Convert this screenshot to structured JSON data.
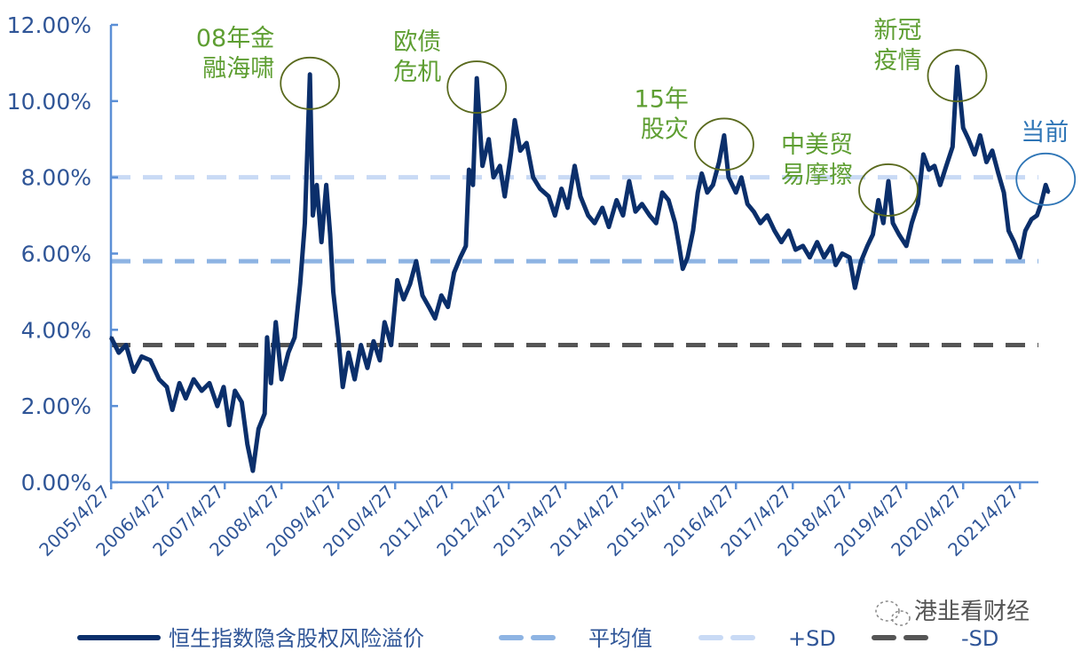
{
  "chart_data": {
    "type": "line",
    "title": "",
    "xlabel": "",
    "ylabel": "",
    "ylim": [
      0,
      12
    ],
    "y_ticks": [
      "0.00%",
      "2.00%",
      "4.00%",
      "6.00%",
      "8.00%",
      "10.00%",
      "12.00%"
    ],
    "y_tick_values": [
      0,
      2,
      4,
      6,
      8,
      10,
      12
    ],
    "x_ticks": [
      "2005/4/27",
      "2006/4/27",
      "2007/4/27",
      "2008/4/27",
      "2009/4/27",
      "2010/4/27",
      "2011/4/27",
      "2012/4/27",
      "2013/4/27",
      "2014/4/27",
      "2015/4/27",
      "2016/4/27",
      "2017/4/27",
      "2018/4/27",
      "2019/4/27",
      "2020/4/27",
      "2021/4/27"
    ],
    "grid": false,
    "legend_placement": "bottom",
    "series": [
      {
        "name": "恒生指数隐含股权风险溢价",
        "color": "#0b2f6b",
        "style": "solid",
        "points": [
          [
            "2005-04-27",
            3.8
          ],
          [
            "2005-06-15",
            3.4
          ],
          [
            "2005-08-01",
            3.6
          ],
          [
            "2005-09-20",
            2.9
          ],
          [
            "2005-11-10",
            3.3
          ],
          [
            "2006-01-05",
            3.2
          ],
          [
            "2006-03-01",
            2.7
          ],
          [
            "2006-04-20",
            2.5
          ],
          [
            "2006-05-25",
            1.9
          ],
          [
            "2006-07-10",
            2.6
          ],
          [
            "2006-08-20",
            2.2
          ],
          [
            "2006-10-10",
            2.7
          ],
          [
            "2006-12-01",
            2.4
          ],
          [
            "2007-01-20",
            2.6
          ],
          [
            "2007-03-10",
            2.0
          ],
          [
            "2007-04-20",
            2.5
          ],
          [
            "2007-05-25",
            1.5
          ],
          [
            "2007-07-01",
            2.4
          ],
          [
            "2007-08-15",
            2.1
          ],
          [
            "2007-09-20",
            1.0
          ],
          [
            "2007-10-25",
            0.3
          ],
          [
            "2007-12-01",
            1.4
          ],
          [
            "2008-01-10",
            1.8
          ],
          [
            "2008-01-25",
            3.8
          ],
          [
            "2008-02-20",
            2.6
          ],
          [
            "2008-03-20",
            4.2
          ],
          [
            "2008-04-27",
            2.7
          ],
          [
            "2008-06-10",
            3.4
          ],
          [
            "2008-07-20",
            3.8
          ],
          [
            "2008-08-25",
            5.2
          ],
          [
            "2008-09-25",
            6.8
          ],
          [
            "2008-10-27",
            10.7
          ],
          [
            "2008-11-15",
            7.0
          ],
          [
            "2008-12-10",
            7.8
          ],
          [
            "2009-01-10",
            6.3
          ],
          [
            "2009-02-10",
            7.8
          ],
          [
            "2009-03-05",
            6.5
          ],
          [
            "2009-03-25",
            5.0
          ],
          [
            "2009-04-27",
            3.8
          ],
          [
            "2009-05-25",
            2.5
          ],
          [
            "2009-07-01",
            3.4
          ],
          [
            "2009-08-10",
            2.7
          ],
          [
            "2009-09-20",
            3.6
          ],
          [
            "2009-11-01",
            3.0
          ],
          [
            "2009-12-10",
            3.7
          ],
          [
            "2010-01-20",
            3.2
          ],
          [
            "2010-02-20",
            4.2
          ],
          [
            "2010-04-01",
            3.6
          ],
          [
            "2010-05-10",
            5.3
          ],
          [
            "2010-06-20",
            4.8
          ],
          [
            "2010-08-01",
            5.2
          ],
          [
            "2010-09-10",
            5.8
          ],
          [
            "2010-10-20",
            4.9
          ],
          [
            "2010-12-01",
            4.6
          ],
          [
            "2011-01-10",
            4.3
          ],
          [
            "2011-02-20",
            4.9
          ],
          [
            "2011-04-01",
            4.6
          ],
          [
            "2011-05-10",
            5.5
          ],
          [
            "2011-06-20",
            5.9
          ],
          [
            "2011-07-25",
            6.2
          ],
          [
            "2011-08-15",
            8.2
          ],
          [
            "2011-09-10",
            7.8
          ],
          [
            "2011-10-04",
            10.6
          ],
          [
            "2011-11-10",
            8.3
          ],
          [
            "2011-12-20",
            9.0
          ],
          [
            "2012-01-20",
            8.0
          ],
          [
            "2012-03-01",
            8.3
          ],
          [
            "2012-04-01",
            7.5
          ],
          [
            "2012-05-10",
            8.6
          ],
          [
            "2012-06-05",
            9.5
          ],
          [
            "2012-07-10",
            8.7
          ],
          [
            "2012-08-20",
            8.9
          ],
          [
            "2012-10-01",
            8.0
          ],
          [
            "2012-11-15",
            7.7
          ],
          [
            "2013-01-10",
            7.5
          ],
          [
            "2013-02-20",
            7.0
          ],
          [
            "2013-04-01",
            7.7
          ],
          [
            "2013-05-10",
            7.2
          ],
          [
            "2013-06-25",
            8.3
          ],
          [
            "2013-08-01",
            7.5
          ],
          [
            "2013-09-20",
            7.0
          ],
          [
            "2013-11-01",
            6.8
          ],
          [
            "2013-12-20",
            7.2
          ],
          [
            "2014-02-01",
            6.7
          ],
          [
            "2014-03-20",
            7.4
          ],
          [
            "2014-05-01",
            7.0
          ],
          [
            "2014-06-10",
            7.9
          ],
          [
            "2014-07-20",
            7.1
          ],
          [
            "2014-09-01",
            7.3
          ],
          [
            "2014-10-20",
            7.0
          ],
          [
            "2014-12-01",
            6.8
          ],
          [
            "2015-01-10",
            7.6
          ],
          [
            "2015-02-20",
            7.4
          ],
          [
            "2015-04-01",
            6.8
          ],
          [
            "2015-04-27",
            6.2
          ],
          [
            "2015-05-20",
            5.6
          ],
          [
            "2015-06-20",
            5.9
          ],
          [
            "2015-07-25",
            6.6
          ],
          [
            "2015-08-25",
            7.6
          ],
          [
            "2015-09-20",
            8.1
          ],
          [
            "2015-10-25",
            7.6
          ],
          [
            "2015-12-01",
            7.8
          ],
          [
            "2016-01-10",
            8.4
          ],
          [
            "2016-02-12",
            9.1
          ],
          [
            "2016-03-10",
            8.0
          ],
          [
            "2016-04-27",
            7.6
          ],
          [
            "2016-06-01",
            8.0
          ],
          [
            "2016-07-10",
            7.3
          ],
          [
            "2016-08-20",
            7.1
          ],
          [
            "2016-10-01",
            6.8
          ],
          [
            "2016-11-15",
            7.0
          ],
          [
            "2017-01-01",
            6.6
          ],
          [
            "2017-02-15",
            6.3
          ],
          [
            "2017-04-01",
            6.6
          ],
          [
            "2017-05-15",
            6.1
          ],
          [
            "2017-07-01",
            6.2
          ],
          [
            "2017-08-15",
            5.9
          ],
          [
            "2017-10-01",
            6.3
          ],
          [
            "2017-11-15",
            5.9
          ],
          [
            "2018-01-01",
            6.2
          ],
          [
            "2018-01-29",
            5.7
          ],
          [
            "2018-03-10",
            6.0
          ],
          [
            "2018-04-27",
            5.9
          ],
          [
            "2018-06-01",
            5.1
          ],
          [
            "2018-07-10",
            5.8
          ],
          [
            "2018-08-20",
            6.2
          ],
          [
            "2018-09-25",
            6.5
          ],
          [
            "2018-10-30",
            7.4
          ],
          [
            "2018-12-01",
            6.8
          ],
          [
            "2019-01-03",
            7.9
          ],
          [
            "2019-02-01",
            6.8
          ],
          [
            "2019-03-10",
            6.5
          ],
          [
            "2019-04-27",
            6.2
          ],
          [
            "2019-06-01",
            6.8
          ],
          [
            "2019-07-10",
            7.3
          ],
          [
            "2019-08-15",
            8.6
          ],
          [
            "2019-09-20",
            8.2
          ],
          [
            "2019-10-25",
            8.3
          ],
          [
            "2019-12-01",
            7.8
          ],
          [
            "2020-01-10",
            8.3
          ],
          [
            "2020-02-20",
            8.8
          ],
          [
            "2020-03-19",
            10.9
          ],
          [
            "2020-04-27",
            9.3
          ],
          [
            "2020-06-01",
            9.0
          ],
          [
            "2020-07-10",
            8.6
          ],
          [
            "2020-08-15",
            9.1
          ],
          [
            "2020-09-25",
            8.4
          ],
          [
            "2020-11-01",
            8.7
          ],
          [
            "2020-12-10",
            8.1
          ],
          [
            "2021-01-15",
            7.6
          ],
          [
            "2021-02-15",
            6.6
          ],
          [
            "2021-03-20",
            6.3
          ],
          [
            "2021-04-27",
            5.9
          ],
          [
            "2021-06-01",
            6.6
          ],
          [
            "2021-07-10",
            6.9
          ],
          [
            "2021-08-15",
            7.0
          ],
          [
            "2021-09-10",
            7.3
          ],
          [
            "2021-10-10",
            7.8
          ],
          [
            "2021-10-27",
            7.6
          ]
        ]
      },
      {
        "name": "平均值",
        "color": "#8eb4e3",
        "style": "dashed",
        "value": 5.8
      },
      {
        "name": "+SD",
        "color": "#c9daf5",
        "style": "dashed",
        "value": 8.0
      },
      {
        "name": "-SD",
        "color": "#555555",
        "style": "dashed",
        "value": 3.6
      }
    ],
    "annotations": [
      {
        "text": [
          "08年金",
          "融海啸"
        ],
        "date": "2008-10-27",
        "value": 10.7,
        "color": "#5e9e32"
      },
      {
        "text": [
          "欧债",
          "危机"
        ],
        "date": "2011-10-04",
        "value": 10.6,
        "color": "#5e9e32"
      },
      {
        "text": [
          "15年",
          "股灾"
        ],
        "date": "2016-02-12",
        "value": 9.1,
        "color": "#5e9e32"
      },
      {
        "text": [
          "中美贸",
          "易摩擦"
        ],
        "date": "2019-01-03",
        "value": 7.9,
        "color": "#5e9e32"
      },
      {
        "text": [
          "新冠",
          "疫情"
        ],
        "date": "2020-03-19",
        "value": 10.9,
        "color": "#5e9e32"
      },
      {
        "text": [
          "当前"
        ],
        "date": "2021-10-27",
        "value": 7.6,
        "color": "#2e75b6"
      }
    ]
  },
  "watermark": "港韭看财经"
}
